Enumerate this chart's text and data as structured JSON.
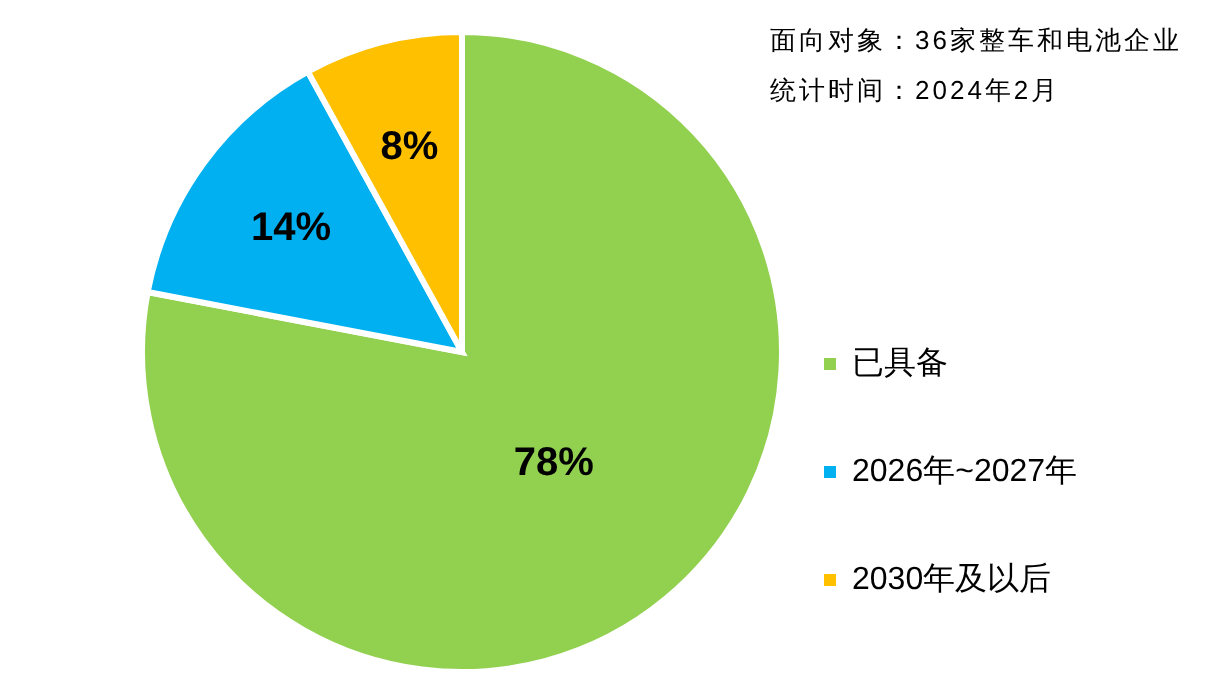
{
  "chart_data": {
    "type": "pie",
    "categories": [
      "已具备",
      "2026年~2027年",
      "2030年及以后"
    ],
    "values": [
      78,
      14,
      8
    ],
    "colors": [
      "#92d050",
      "#00b0f0",
      "#ffc000"
    ],
    "value_labels": [
      "78%",
      "14%",
      "8%"
    ],
    "legend": "right",
    "annotations": [
      "面向对象：36家整车和电池企业",
      "统计时间：2024年2月"
    ]
  }
}
